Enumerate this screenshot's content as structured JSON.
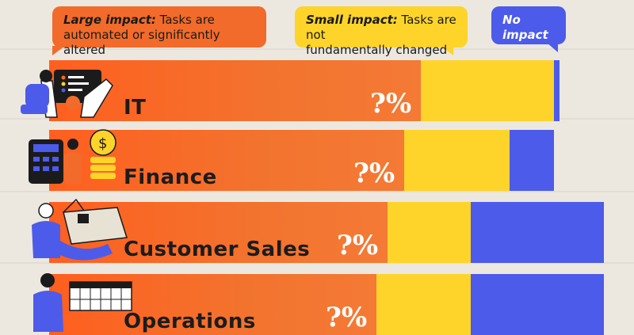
{
  "legend": {
    "large_title": "Large impact:",
    "large_text_1": " Tasks are",
    "large_text_2": "automated or significantly altered",
    "small_title": "Small impact:",
    "small_text_1": " Tasks are not",
    "small_text_2": "fundamentally changed",
    "none_title": "No impact"
  },
  "colors": {
    "large": "#f26b2a",
    "small": "#fed42a",
    "none": "#4c5bea",
    "background": "#ece8df"
  },
  "chart_data": {
    "type": "bar",
    "orientation": "horizontal",
    "stacked": true,
    "categories": [
      "IT",
      "Finance",
      "Customer Sales",
      "Operations"
    ],
    "series": [
      {
        "name": "Large impact",
        "values": [
          67,
          64,
          61,
          59
        ]
      },
      {
        "name": "Small impact",
        "values": [
          24,
          19,
          15,
          17
        ]
      },
      {
        "name": "No impact",
        "values": [
          1,
          8,
          24,
          24
        ]
      }
    ],
    "value_labels": [
      "?%",
      "?%",
      "?%",
      "?%"
    ],
    "title": "",
    "xlabel": "",
    "ylabel": ""
  }
}
